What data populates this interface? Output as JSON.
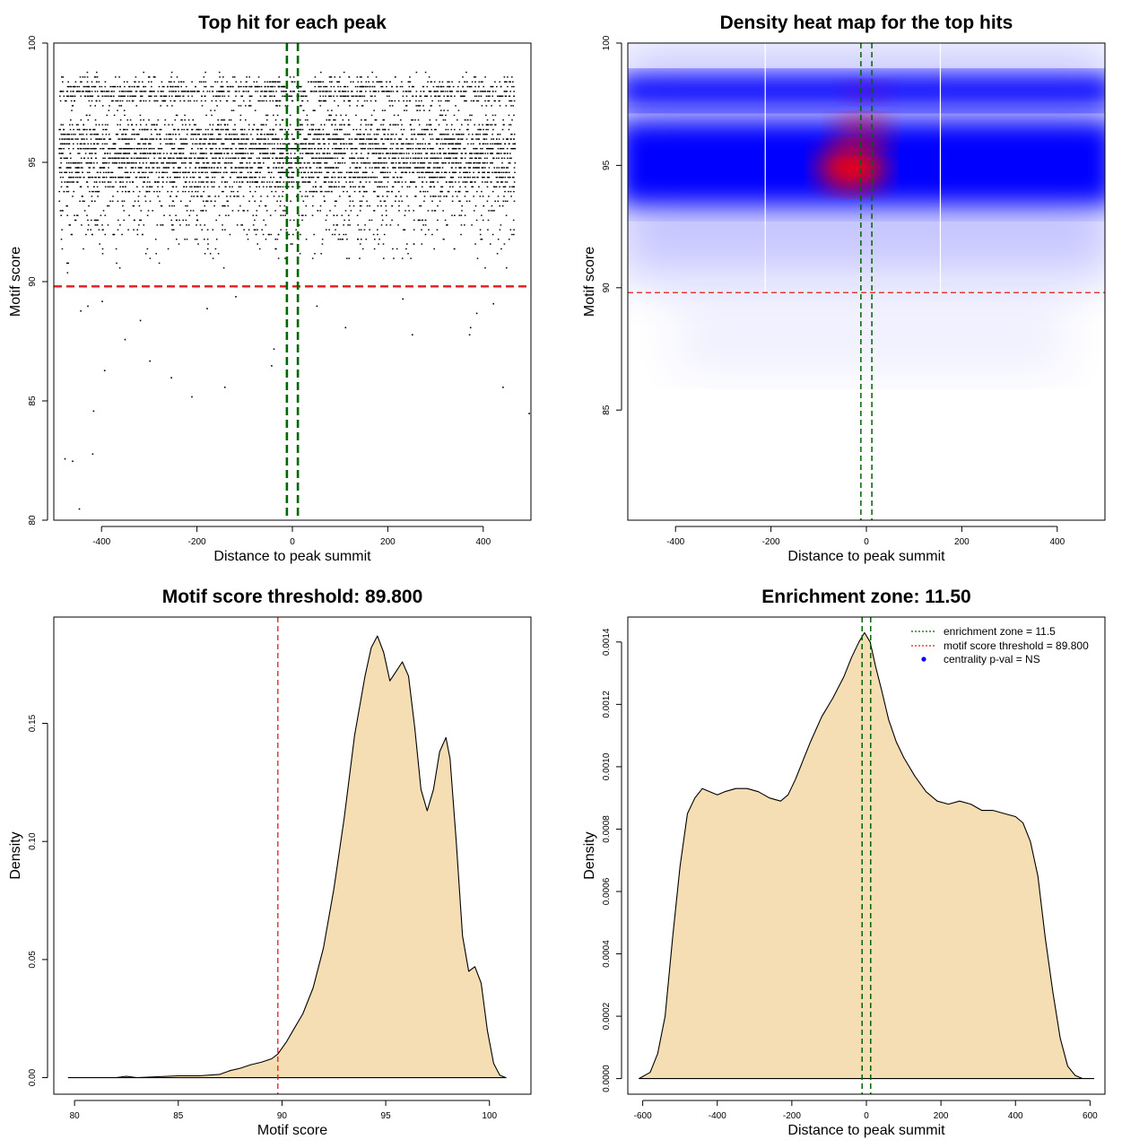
{
  "colors": {
    "threshold_line": "#e41a1c",
    "zone_line": "#006400",
    "density_fill": "#f5deb3",
    "heat_low": "#ffffff",
    "heat_mid": "#0000ff",
    "heat_high": "#ff0000",
    "points": "#000000",
    "legend_point": "#0000ff"
  },
  "chart_data": [
    {
      "id": "panel1",
      "type": "scatter",
      "title": "Top hit for each peak",
      "xlabel": "Distance to peak summit",
      "ylabel": "Motif score",
      "xlim": [
        -500,
        500
      ],
      "ylim": [
        80,
        100
      ],
      "xticks": [
        -400,
        -200,
        0,
        200,
        400
      ],
      "yticks": [
        80,
        85,
        90,
        95,
        100
      ],
      "threshold": 89.8,
      "zone": [
        -11.5,
        11.5
      ],
      "density_score_peaks": [
        94.8,
        96.0,
        98.0
      ],
      "outliers": [
        [
          -478,
          82.6
        ],
        [
          -462,
          82.5
        ],
        [
          -448,
          80.5
        ],
        [
          -420,
          82.8
        ],
        [
          -418,
          84.6
        ],
        [
          -395,
          86.3
        ],
        [
          -352,
          87.6
        ],
        [
          -300,
          86.7
        ],
        [
          -255,
          86.0
        ],
        [
          -212,
          85.2
        ],
        [
          -143,
          85.6
        ],
        [
          -45,
          86.5
        ],
        [
          -40,
          87.2
        ],
        [
          110,
          88.1
        ],
        [
          250,
          87.8
        ],
        [
          370,
          87.8
        ],
        [
          372,
          88.1
        ],
        [
          385,
          88.7
        ],
        [
          440,
          85.6
        ],
        [
          495,
          84.5
        ],
        [
          -445,
          88.8
        ],
        [
          -430,
          89.0
        ],
        [
          -400,
          89.2
        ],
        [
          -320,
          88.4
        ],
        [
          -180,
          88.9
        ],
        [
          -120,
          89.4
        ],
        [
          50,
          89.0
        ],
        [
          230,
          89.3
        ],
        [
          420,
          89.1
        ]
      ]
    },
    {
      "id": "panel2",
      "type": "heatmap",
      "title": "Density heat map for the top hits",
      "xlabel": "Distance to peak summit",
      "ylabel": "Motif score",
      "xlim": [
        -500,
        500
      ],
      "ylim": [
        80.5,
        100
      ],
      "xticks": [
        -400,
        -200,
        0,
        200,
        400
      ],
      "yticks": [
        85,
        90,
        95,
        100
      ],
      "threshold": 89.8,
      "zone": [
        -11.5,
        11.5
      ],
      "white_lines_x": [
        -212,
        155
      ],
      "hotspot": {
        "x": -30,
        "y": 94.9
      }
    },
    {
      "id": "panel3",
      "type": "area",
      "title": "Motif score threshold: 89.800",
      "xlabel": "Motif score",
      "ylabel": "Density",
      "xlim": [
        79,
        102
      ],
      "ylim": [
        -0.007,
        0.195
      ],
      "xticks": [
        80,
        85,
        90,
        95,
        100
      ],
      "yticks": [
        0.0,
        0.05,
        0.1,
        0.15
      ],
      "ytick_labels": [
        "0.00",
        "0.05",
        "0.10",
        "0.15"
      ],
      "threshold": 89.8,
      "x": [
        79.7,
        82.0,
        82.5,
        83.0,
        84.0,
        85.0,
        86.0,
        87.0,
        87.5,
        88.0,
        88.5,
        89.0,
        89.5,
        89.8,
        90.2,
        90.6,
        91.0,
        91.5,
        92.0,
        92.5,
        93.0,
        93.5,
        94.0,
        94.3,
        94.6,
        94.9,
        95.2,
        95.5,
        95.8,
        96.1,
        96.4,
        96.7,
        97.0,
        97.3,
        97.6,
        97.9,
        98.1,
        98.4,
        98.7,
        99.0,
        99.3,
        99.6,
        99.9,
        100.2,
        100.5,
        100.8
      ],
      "y": [
        0.0,
        0.0,
        0.0006,
        0.0,
        0.0004,
        0.0008,
        0.0008,
        0.0014,
        0.003,
        0.004,
        0.0055,
        0.0065,
        0.008,
        0.01,
        0.015,
        0.021,
        0.027,
        0.038,
        0.055,
        0.08,
        0.11,
        0.145,
        0.17,
        0.182,
        0.187,
        0.18,
        0.168,
        0.172,
        0.176,
        0.17,
        0.148,
        0.122,
        0.113,
        0.122,
        0.138,
        0.144,
        0.135,
        0.1,
        0.06,
        0.045,
        0.047,
        0.04,
        0.02,
        0.006,
        0.001,
        0.0
      ]
    },
    {
      "id": "panel4",
      "type": "area",
      "title": "Enrichment zone: 11.50",
      "xlabel": "Distance to peak summit",
      "ylabel": "Density",
      "xlim": [
        -640,
        640
      ],
      "ylim": [
        -5e-05,
        0.00148
      ],
      "xticks": [
        -600,
        -400,
        -200,
        0,
        200,
        400,
        600
      ],
      "yticks": [
        0.0,
        0.0002,
        0.0004,
        0.0006,
        0.0008,
        0.001,
        0.0012,
        0.0014
      ],
      "ytick_labels": [
        "0.0000",
        "0.0002",
        "0.0004",
        "0.0006",
        "0.0008",
        "0.0010",
        "0.0012",
        "0.0014"
      ],
      "zone": [
        -11.5,
        11.5
      ],
      "x": [
        -610,
        -580,
        -560,
        -540,
        -520,
        -500,
        -480,
        -460,
        -440,
        -420,
        -400,
        -380,
        -350,
        -320,
        -290,
        -260,
        -230,
        -210,
        -190,
        -170,
        -150,
        -120,
        -90,
        -60,
        -40,
        -20,
        -5,
        10,
        25,
        40,
        60,
        80,
        100,
        130,
        160,
        190,
        220,
        250,
        280,
        310,
        340,
        370,
        400,
        420,
        440,
        460,
        480,
        500,
        520,
        540,
        560,
        580,
        610
      ],
      "y": [
        0.0,
        2e-05,
        8e-05,
        0.0002,
        0.00045,
        0.00068,
        0.00085,
        0.0009,
        0.00093,
        0.00092,
        0.00091,
        0.00092,
        0.00093,
        0.00093,
        0.00092,
        0.0009,
        0.00089,
        0.00091,
        0.00096,
        0.00102,
        0.00108,
        0.00116,
        0.00122,
        0.00129,
        0.00135,
        0.0014,
        0.00143,
        0.0014,
        0.00132,
        0.00125,
        0.00115,
        0.00108,
        0.00103,
        0.00097,
        0.00092,
        0.00089,
        0.00088,
        0.00089,
        0.00088,
        0.00086,
        0.00086,
        0.00085,
        0.00084,
        0.00082,
        0.00076,
        0.00065,
        0.00045,
        0.00028,
        0.00013,
        4e-05,
        1e-05,
        0.0,
        0.0
      ]
    }
  ],
  "legend": {
    "items": [
      {
        "label": "enrichment zone = 11.5",
        "kind": "dotted",
        "color_key": "zone_line"
      },
      {
        "label": "motif score threshold = 89.800",
        "kind": "dotted",
        "color_key": "threshold_line"
      },
      {
        "label": "centrality p-val = NS",
        "kind": "point",
        "color_key": "legend_point"
      }
    ]
  }
}
